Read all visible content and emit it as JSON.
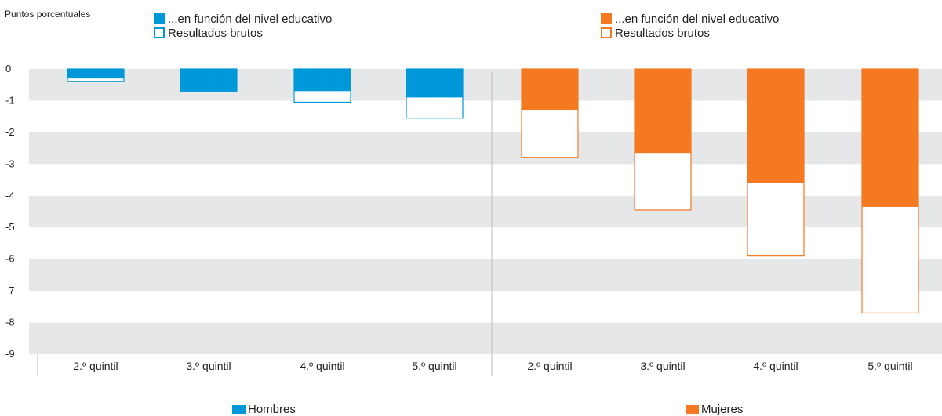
{
  "chart_data": {
    "type": "bar",
    "ylabel": "Puntos porcentuales",
    "ylim": [
      -9,
      0
    ],
    "yticks": [
      "0",
      "-1",
      "-2",
      "-3",
      "-4",
      "-5",
      "-6",
      "-7",
      "-8",
      "-9"
    ],
    "categories": [
      "2.º quintil",
      "3.º quintil",
      "4.º quintil",
      "5.º quintil"
    ],
    "groups": [
      {
        "name": "Hombres",
        "color": "#0098d8",
        "legend": {
          "filled": "...en función del nivel educativo",
          "outline": "Resultados brutos"
        },
        "series": [
          {
            "name": "...en función del nivel educativo",
            "style": "filled",
            "values": [
              -0.3,
              -0.7,
              -0.7,
              -0.9
            ]
          },
          {
            "name": "Resultados brutos",
            "style": "outline",
            "values": [
              -0.4,
              -0.7,
              -1.05,
              -1.55
            ]
          }
        ]
      },
      {
        "name": "Mujeres",
        "color": "#f47920",
        "legend": {
          "filled": "...en función del nivel educativo",
          "outline": "Resultados brutos"
        },
        "series": [
          {
            "name": "...en función del nivel educativo",
            "style": "filled",
            "values": [
              -1.3,
              -2.65,
              -3.6,
              -4.35
            ]
          },
          {
            "name": "Resultados brutos",
            "style": "outline",
            "values": [
              -2.8,
              -4.45,
              -5.9,
              -7.7
            ]
          }
        ]
      }
    ],
    "grid": "alternating bands"
  }
}
